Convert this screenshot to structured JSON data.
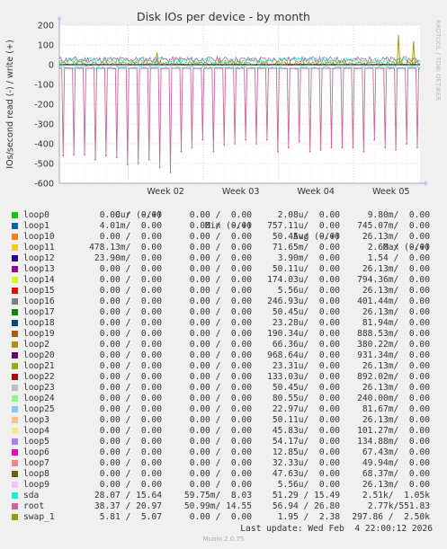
{
  "chart_data": {
    "type": "line",
    "title": "Disk IOs per device - by month",
    "ylabel": "IOs/second read (-) / write (+)",
    "ylim": [
      -600,
      200
    ],
    "yticks": [
      -600,
      -500,
      -400,
      -300,
      -200,
      -100,
      0,
      100,
      200
    ],
    "xticks": [
      {
        "label": "Week 02",
        "day": 9
      },
      {
        "label": "Week 03",
        "day": 16
      },
      {
        "label": "Week 04",
        "day": 23
      },
      {
        "label": "Week 05",
        "day": 30
      }
    ],
    "xlim_days": [
      2.6,
      36.2
    ],
    "grid": true,
    "watermark": "RRDTOOL / TOBI OETIKER",
    "read_spikes": {
      "series": "root",
      "days": [
        2.95,
        3.95,
        4.95,
        5.95,
        6.95,
        7.95,
        8.95,
        9.95,
        10.95,
        11.95,
        12.95,
        13.95,
        14.95,
        15.95,
        16.95,
        17.95,
        18.95,
        19.95,
        20.95,
        21.95,
        22.95,
        23.95,
        24.95,
        25.95,
        26.95,
        27.95,
        28.95,
        29.95,
        30.95,
        31.95,
        32.95,
        33.95,
        34.95,
        35.95
      ],
      "values": [
        -460,
        -455,
        -455,
        -480,
        -460,
        -470,
        -505,
        -500,
        -480,
        -520,
        -545,
        -440,
        -420,
        -380,
        -440,
        -405,
        -400,
        -380,
        -400,
        -380,
        -440,
        -420,
        -390,
        -440,
        -430,
        -420,
        -420,
        -420,
        -440,
        -380,
        -420,
        -430,
        -400,
        -420
      ]
    },
    "series": [
      {
        "name": "loop0",
        "color": "#00cc00",
        "cur": "0.00 /  0.00",
        "min": "0.00 /  0.00",
        "avg": "2.08u/  0.00",
        "max": "9.80m/  0.00"
      },
      {
        "name": "loop1",
        "color": "#0066b3",
        "cur": "4.01m/  0.00",
        "min": "0.00 /  0.00",
        "avg": "757.11u/  0.00",
        "max": "745.07m/  0.00"
      },
      {
        "name": "loop10",
        "color": "#ff8000",
        "cur": "0.00 /  0.00",
        "min": "0.00 /  0.00",
        "avg": "50.45u/  0.00",
        "max": "26.13m/  0.00"
      },
      {
        "name": "loop11",
        "color": "#ffcc00",
        "cur": "478.13m/  0.00",
        "min": "0.00 /  0.00",
        "avg": "71.65m/  0.00",
        "max": "2.60 /  0.00"
      },
      {
        "name": "loop12",
        "color": "#330099",
        "cur": "23.90m/  0.00",
        "min": "0.00 /  0.00",
        "avg": "3.90m/  0.00",
        "max": "1.54 /  0.00"
      },
      {
        "name": "loop13",
        "color": "#990099",
        "cur": "0.00 /  0.00",
        "min": "0.00 /  0.00",
        "avg": "50.11u/  0.00",
        "max": "26.13m/  0.00"
      },
      {
        "name": "loop14",
        "color": "#ccff00",
        "cur": "0.00 /  0.00",
        "min": "0.00 /  0.00",
        "avg": "174.03u/  0.00",
        "max": "794.36m/  0.00"
      },
      {
        "name": "loop15",
        "color": "#ff0000",
        "cur": "0.00 /  0.00",
        "min": "0.00 /  0.00",
        "avg": "5.56u/  0.00",
        "max": "26.13m/  0.00"
      },
      {
        "name": "loop16",
        "color": "#808080",
        "cur": "0.00 /  0.00",
        "min": "0.00 /  0.00",
        "avg": "246.93u/  0.00",
        "max": "401.44m/  0.00"
      },
      {
        "name": "loop17",
        "color": "#008f00",
        "cur": "0.00 /  0.00",
        "min": "0.00 /  0.00",
        "avg": "50.45u/  0.00",
        "max": "26.13m/  0.00"
      },
      {
        "name": "loop18",
        "color": "#00487d",
        "cur": "0.00 /  0.00",
        "min": "0.00 /  0.00",
        "avg": "23.28u/  0.00",
        "max": "81.94m/  0.00"
      },
      {
        "name": "loop19",
        "color": "#b35a00",
        "cur": "0.00 /  0.00",
        "min": "0.00 /  0.00",
        "avg": "190.34u/  0.00",
        "max": "888.53m/  0.00"
      },
      {
        "name": "loop2",
        "color": "#b38f00",
        "cur": "0.00 /  0.00",
        "min": "0.00 /  0.00",
        "avg": "66.36u/  0.00",
        "max": "380.22m/  0.00"
      },
      {
        "name": "loop20",
        "color": "#6b006b",
        "cur": "0.00 /  0.00",
        "min": "0.00 /  0.00",
        "avg": "968.64u/  0.00",
        "max": "931.34m/  0.00"
      },
      {
        "name": "loop21",
        "color": "#8fb300",
        "cur": "0.00 /  0.00",
        "min": "0.00 /  0.00",
        "avg": "23.31u/  0.00",
        "max": "26.13m/  0.00"
      },
      {
        "name": "loop22",
        "color": "#b30000",
        "cur": "0.00 /  0.00",
        "min": "0.00 /  0.00",
        "avg": "133.03u/  0.00",
        "max": "892.02m/  0.00"
      },
      {
        "name": "loop23",
        "color": "#bebebe",
        "cur": "0.00 /  0.00",
        "min": "0.00 /  0.00",
        "avg": "50.45u/  0.00",
        "max": "26.13m/  0.00"
      },
      {
        "name": "loop24",
        "color": "#80ff80",
        "cur": "0.00 /  0.00",
        "min": "0.00 /  0.00",
        "avg": "80.55u/  0.00",
        "max": "240.00m/  0.00"
      },
      {
        "name": "loop25",
        "color": "#80c9ff",
        "cur": "0.00 /  0.00",
        "min": "0.00 /  0.00",
        "avg": "22.97u/  0.00",
        "max": "81.67m/  0.00"
      },
      {
        "name": "loop3",
        "color": "#ffc080",
        "cur": "0.00 /  0.00",
        "min": "0.00 /  0.00",
        "avg": "50.11u/  0.00",
        "max": "26.13m/  0.00"
      },
      {
        "name": "loop4",
        "color": "#ffe680",
        "cur": "0.00 /  0.00",
        "min": "0.00 /  0.00",
        "avg": "45.83u/  0.00",
        "max": "101.27m/  0.00"
      },
      {
        "name": "loop5",
        "color": "#aa80ff",
        "cur": "0.00 /  0.00",
        "min": "0.00 /  0.00",
        "avg": "54.17u/  0.00",
        "max": "134.88m/  0.00"
      },
      {
        "name": "loop6",
        "color": "#ee00cc",
        "cur": "0.00 /  0.00",
        "min": "0.00 /  0.00",
        "avg": "12.85u/  0.00",
        "max": "67.43m/  0.00"
      },
      {
        "name": "loop7",
        "color": "#ff8080",
        "cur": "0.00 /  0.00",
        "min": "0.00 /  0.00",
        "avg": "32.33u/  0.00",
        "max": "49.94m/  0.00"
      },
      {
        "name": "loop8",
        "color": "#666600",
        "cur": "0.00 /  0.00",
        "min": "0.00 /  0.00",
        "avg": "47.63u/  0.00",
        "max": "68.37m/  0.00"
      },
      {
        "name": "loop9",
        "color": "#ffbfff",
        "cur": "0.00 /  0.00",
        "min": "0.00 /  0.00",
        "avg": "5.56u/  0.00",
        "max": "26.13m/  0.00"
      },
      {
        "name": "sda",
        "color": "#00ffcc",
        "cur": "28.07 / 15.64",
        "min": "59.75m/  8.03",
        "avg": "51.29 / 15.49",
        "max": "2.51k/  1.05k"
      },
      {
        "name": "root",
        "color": "#cc6699",
        "cur": "38.37 / 20.97",
        "min": "50.99m/ 14.55",
        "avg": "56.94 / 26.80",
        "max": "2.77k/551.83"
      },
      {
        "name": "swap_1",
        "color": "#999900",
        "cur": "5.81 /  5.07",
        "min": "0.00 /  0.00",
        "avg": "1.95 /  2.38",
        "max": "297.86 /  2.50k"
      }
    ]
  },
  "legend_header": {
    "cur": "Cur (-/+)",
    "min": "Min (-/+)",
    "avg": "Avg (-/+)",
    "max": "Max (-/+)"
  },
  "footer": {
    "last_update": "Last update: Wed Feb  4 22:00:12 2026",
    "version": "Munin 2.0.75"
  }
}
